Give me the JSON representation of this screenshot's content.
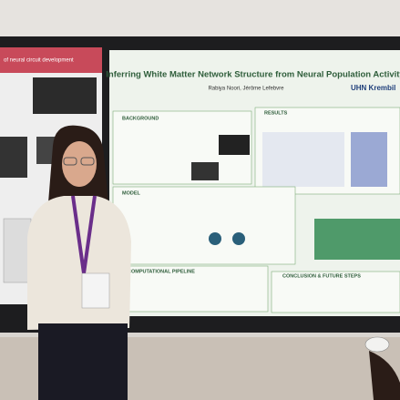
{
  "poster": {
    "title": "Inferring White Matter Network Structure from Neural Population Activity",
    "authors": "Rabiya Noori, Jérôme Lefebvre",
    "logo": "UHN Krembil",
    "sections": [
      "BACKGROUND",
      "RESULTS",
      "MODEL",
      "COMPUTATIONAL PIPELINE",
      "CONCLUSION & FUTURE STEPS"
    ]
  },
  "left_poster": {
    "title": "of neural circuit development"
  }
}
